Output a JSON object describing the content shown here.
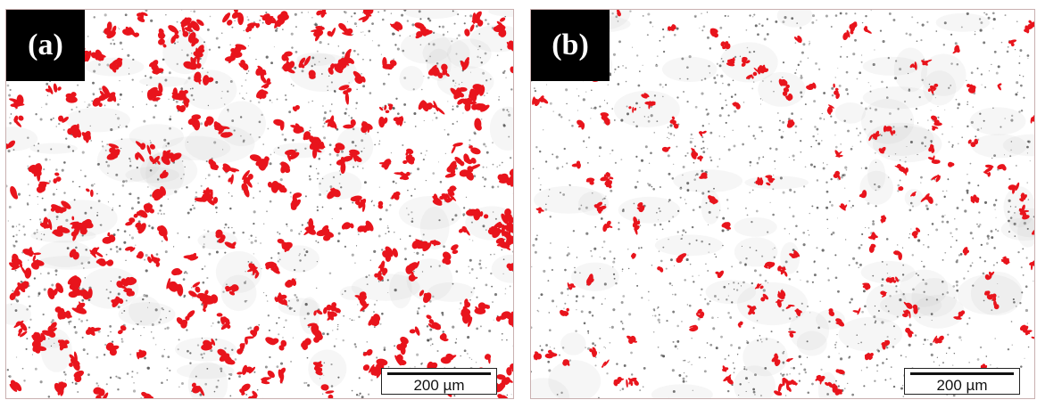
{
  "panels": [
    {
      "label": "(a)",
      "scale_text": "200 µm",
      "phase_fraction": 0.3
    },
    {
      "label": "(b)",
      "scale_text": "200 µm",
      "phase_fraction": 0.08
    }
  ],
  "colors": {
    "phase": "#e8141c",
    "pore": "#444444",
    "haze": "#b8b8b8",
    "background": "#ffffff"
  }
}
